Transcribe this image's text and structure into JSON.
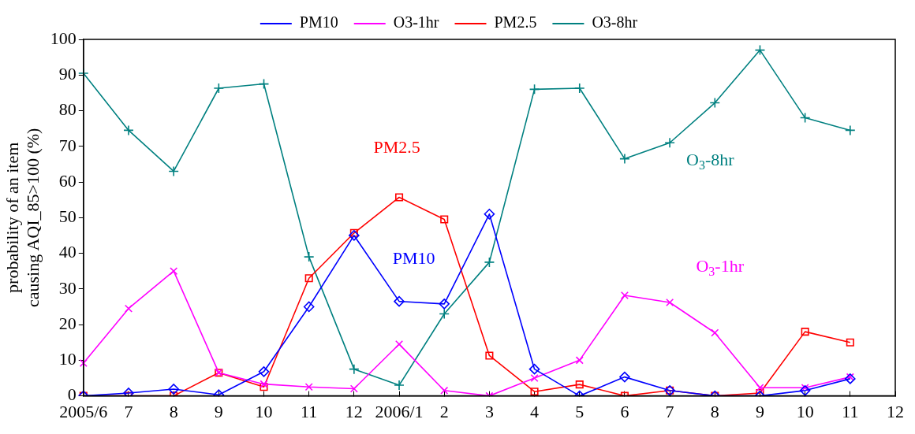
{
  "chart_data": {
    "type": "line",
    "ylabel": "probability of an item\ncausing AQI_85>100 (%)",
    "categories": [
      "2005/6",
      "7",
      "8",
      "9",
      "10",
      "11",
      "12",
      "2006/1",
      "2",
      "3",
      "4",
      "5",
      "6",
      "7",
      "8",
      "9",
      "10",
      "11",
      "12"
    ],
    "series": [
      {
        "name": "PM10",
        "color": "#0000ff",
        "marker": "diamond",
        "values": [
          0,
          0.8,
          1.9,
          0.3,
          6.8,
          25,
          45,
          26.5,
          25.8,
          51,
          7.5,
          0,
          5.3,
          1.5,
          0,
          0,
          1.5,
          4.8,
          null
        ]
      },
      {
        "name": "O3-1hr",
        "color": "#ff00ff",
        "marker": "x",
        "values": [
          9.2,
          24.5,
          35,
          6.5,
          3.3,
          2.5,
          2,
          14.5,
          1.5,
          0,
          5,
          10,
          28.2,
          26.2,
          17.7,
          2.3,
          2.3,
          5.3,
          null
        ]
      },
      {
        "name": "PM2.5",
        "color": "#ff0000",
        "marker": "square",
        "values": [
          0,
          0,
          0,
          6.5,
          2.5,
          33,
          45.7,
          55.7,
          49.5,
          11.3,
          1.2,
          3.2,
          0,
          1.5,
          0,
          0.8,
          18,
          15,
          null
        ]
      },
      {
        "name": "O3-8hr",
        "color": "#008080",
        "marker": "cross",
        "values": [
          90.5,
          74.5,
          63,
          86.3,
          87.5,
          39,
          7.5,
          3,
          23,
          37.5,
          86,
          86.3,
          66.5,
          71,
          82.2,
          97,
          78,
          74.5,
          null
        ]
      }
    ],
    "annotations": [
      "PM2.5",
      "PM10",
      "O$_{3}$-8hr",
      "O$_{3}$-1hr"
    ],
    "ylim": [
      0,
      100
    ],
    "yticks": [
      0,
      10,
      20,
      30,
      40,
      50,
      60,
      70,
      80,
      90,
      100
    ],
    "grid": false,
    "legend": "top",
    "line_style": "solid"
  }
}
